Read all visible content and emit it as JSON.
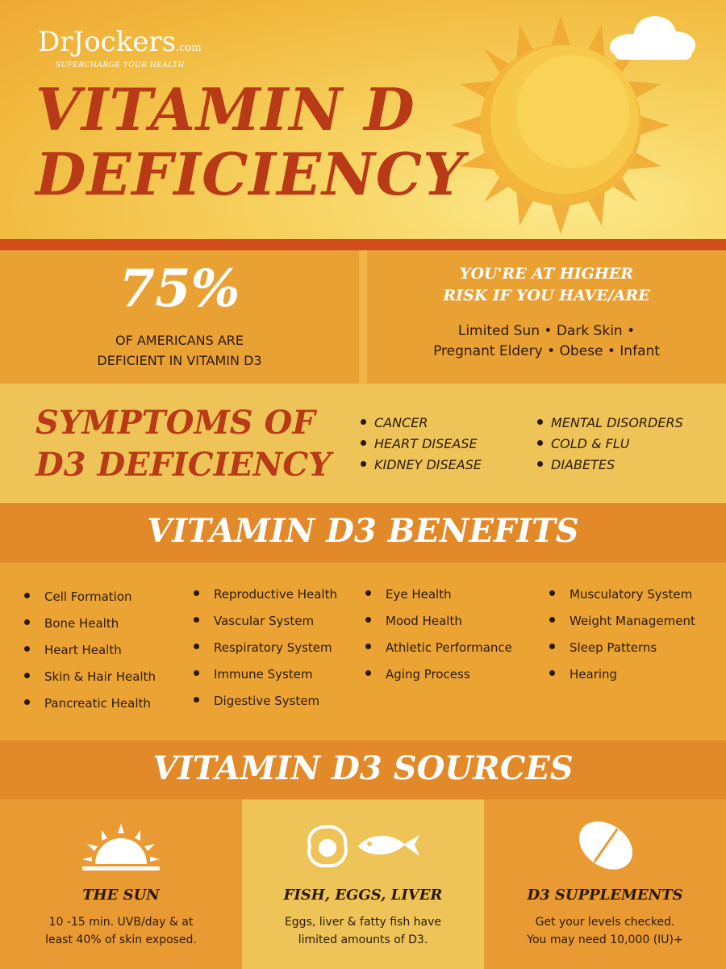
{
  "colors": {
    "accent_red": "#b83a16",
    "orange_band": "#e2892a",
    "yellow_panel": "#eec458",
    "white": "#ffffff",
    "text_dark": "#2b1a0c"
  },
  "header": {
    "logo": {
      "brand": "DrJockers",
      "domain": ".com",
      "tagline": "SUPERCHARGE YOUR HEALTH"
    },
    "title_line1": "VITAMIN D",
    "title_line2": "DEFICIENCY",
    "icons": [
      "sun-icon",
      "cloud-icon"
    ]
  },
  "stats": {
    "percent": "75%",
    "line1": "OF AMERICANS ARE",
    "line2": "DEFICIENT IN VITAMIN D3"
  },
  "risk": {
    "heading_line1": "YOU'RE AT HIGHER",
    "heading_line2": "RISK IF YOU HAVE/ARE",
    "line1": "Limited Sun • Dark Skin •",
    "line2": "Pregnant Eldery • Obese • Infant"
  },
  "symptoms": {
    "title_line1": "SYMPTOMS OF",
    "title_line2": "D3 DEFICIENCY",
    "items": [
      "CANCER",
      "HEART DISEASE",
      "KIDNEY DISEASE",
      "MENTAL DISORDERS",
      "COLD & FLU",
      "DIABETES"
    ]
  },
  "benefits": {
    "title": "VITAMIN D3 BENEFITS",
    "items": [
      "Cell Formation",
      "Bone Health",
      "Heart Health",
      "Skin & Hair Health",
      "Pancreatic Health",
      "Reproductive Health",
      "Vascular System",
      "Respiratory System",
      "Immune System",
      "Digestive System",
      "Eye Health",
      "Mood Health",
      "Athletic Performance",
      "Aging Process",
      "Musculatory System",
      "Weight Management",
      "Sleep Patterns",
      "Hearing"
    ]
  },
  "sources": {
    "title": "VITAMIN D3 SOURCES",
    "items": [
      {
        "title": "THE SUN",
        "line1": "10 -15 min. UVB/day & at",
        "line2": "least 40% of skin exposed.",
        "icon": "sunrise-icon"
      },
      {
        "title": "FISH, EGGS, LIVER",
        "line1": "Eggs, liver & fatty fish have",
        "line2": "limited amounts of D3.",
        "icon": "egg-fish-icon"
      },
      {
        "title": "D3 SUPPLEMENTS",
        "line1": "Get your levels checked.",
        "line2": "You may need 10,000 (IU)+",
        "icon": "pill-icon"
      }
    ]
  }
}
